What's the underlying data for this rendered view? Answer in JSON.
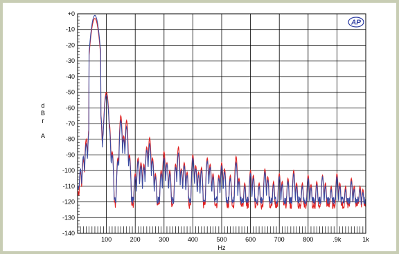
{
  "chart_data": {
    "type": "line",
    "title": "",
    "xlabel": "Hz",
    "ylabel_lines": [
      "d",
      "B",
      "r",
      "",
      "A"
    ],
    "logo": "AP",
    "xlim": [
      0,
      1000
    ],
    "ylim": [
      -140,
      0
    ],
    "grid": true,
    "x_tick_labels": [
      {
        "v": 100,
        "t": "100"
      },
      {
        "v": 200,
        "t": "200"
      },
      {
        "v": 300,
        "t": "300"
      },
      {
        "v": 400,
        "t": "400"
      },
      {
        "v": 500,
        "t": "500"
      },
      {
        "v": 600,
        "t": "600"
      },
      {
        "v": 700,
        "t": "700"
      },
      {
        "v": 800,
        "t": "800"
      },
      {
        "v": 900,
        "t": ".9k"
      },
      {
        "v": 1000,
        "t": "1k"
      }
    ],
    "y_tick_labels": [
      {
        "v": 0,
        "t": "+0"
      },
      {
        "v": -10,
        "t": "-10"
      },
      {
        "v": -20,
        "t": "-20"
      },
      {
        "v": -30,
        "t": "-30"
      },
      {
        "v": -40,
        "t": "-40"
      },
      {
        "v": -50,
        "t": "-50"
      },
      {
        "v": -60,
        "t": "-60"
      },
      {
        "v": -70,
        "t": "-70"
      },
      {
        "v": -80,
        "t": "-80"
      },
      {
        "v": -90,
        "t": "-90"
      },
      {
        "v": -100,
        "t": "-100"
      },
      {
        "v": -110,
        "t": "-110"
      },
      {
        "v": -120,
        "t": "-120"
      },
      {
        "v": -130,
        "t": "-130"
      },
      {
        "v": -140,
        "t": "-140"
      }
    ],
    "series": [
      {
        "color": "#e02020",
        "floor": -122,
        "peaks": [
          [
            10,
            -101
          ],
          [
            20,
            -93
          ],
          [
            30,
            -80
          ],
          [
            40,
            -73
          ],
          [
            60,
            -3
          ],
          [
            80,
            -66
          ],
          [
            90,
            -73
          ],
          [
            100,
            -50
          ],
          [
            110,
            -70
          ],
          [
            120,
            -88
          ],
          [
            140,
            -92
          ],
          [
            150,
            -65
          ],
          [
            160,
            -78
          ],
          [
            170,
            -68
          ],
          [
            180,
            -90
          ],
          [
            200,
            -102
          ],
          [
            210,
            -92
          ],
          [
            220,
            -95
          ],
          [
            230,
            -96
          ],
          [
            240,
            -85
          ],
          [
            250,
            -79
          ],
          [
            260,
            -92
          ],
          [
            270,
            -102
          ],
          [
            290,
            -100
          ],
          [
            300,
            -88
          ],
          [
            310,
            -95
          ],
          [
            320,
            -100
          ],
          [
            340,
            -96
          ],
          [
            350,
            -85
          ],
          [
            360,
            -99
          ],
          [
            370,
            -95
          ],
          [
            380,
            -101
          ],
          [
            400,
            -90
          ],
          [
            410,
            -97
          ],
          [
            420,
            -101
          ],
          [
            430,
            -98
          ],
          [
            450,
            -92
          ],
          [
            460,
            -96
          ],
          [
            470,
            -102
          ],
          [
            490,
            -103
          ],
          [
            500,
            -95
          ],
          [
            510,
            -99
          ],
          [
            530,
            -103
          ],
          [
            550,
            -91
          ],
          [
            560,
            -105
          ],
          [
            580,
            -108
          ],
          [
            600,
            -100
          ],
          [
            610,
            -103
          ],
          [
            630,
            -108
          ],
          [
            650,
            -99
          ],
          [
            660,
            -104
          ],
          [
            680,
            -107
          ],
          [
            700,
            -102
          ],
          [
            710,
            -107
          ],
          [
            730,
            -105
          ],
          [
            750,
            -100
          ],
          [
            760,
            -108
          ],
          [
            780,
            -108
          ],
          [
            800,
            -103
          ],
          [
            810,
            -109
          ],
          [
            830,
            -107
          ],
          [
            850,
            -103
          ],
          [
            860,
            -108
          ],
          [
            880,
            -110
          ],
          [
            900,
            -102
          ],
          [
            910,
            -108
          ],
          [
            930,
            -110
          ],
          [
            950,
            -105
          ],
          [
            960,
            -110
          ],
          [
            980,
            -110
          ],
          [
            990,
            -112
          ]
        ]
      },
      {
        "color": "#3a4aa0",
        "floor": -119,
        "peaks": [
          [
            10,
            -99
          ],
          [
            20,
            -91
          ],
          [
            30,
            -83
          ],
          [
            40,
            -75
          ],
          [
            60,
            -1
          ],
          [
            80,
            -64
          ],
          [
            90,
            -76
          ],
          [
            100,
            -52
          ],
          [
            110,
            -73
          ],
          [
            120,
            -90
          ],
          [
            140,
            -94
          ],
          [
            150,
            -68
          ],
          [
            160,
            -80
          ],
          [
            170,
            -72
          ],
          [
            180,
            -92
          ],
          [
            200,
            -104
          ],
          [
            210,
            -94
          ],
          [
            220,
            -97
          ],
          [
            230,
            -98
          ],
          [
            240,
            -87
          ],
          [
            250,
            -83
          ],
          [
            260,
            -94
          ],
          [
            270,
            -104
          ],
          [
            290,
            -102
          ],
          [
            300,
            -92
          ],
          [
            310,
            -96
          ],
          [
            320,
            -102
          ],
          [
            340,
            -98
          ],
          [
            350,
            -89
          ],
          [
            360,
            -100
          ],
          [
            370,
            -97
          ],
          [
            380,
            -103
          ],
          [
            400,
            -92
          ],
          [
            410,
            -99
          ],
          [
            420,
            -103
          ],
          [
            430,
            -100
          ],
          [
            450,
            -94
          ],
          [
            460,
            -98
          ],
          [
            470,
            -104
          ],
          [
            490,
            -105
          ],
          [
            500,
            -97
          ],
          [
            510,
            -101
          ],
          [
            530,
            -105
          ],
          [
            550,
            -95
          ],
          [
            560,
            -107
          ],
          [
            580,
            -110
          ],
          [
            600,
            -102
          ],
          [
            610,
            -105
          ],
          [
            630,
            -110
          ],
          [
            650,
            -101
          ],
          [
            660,
            -106
          ],
          [
            680,
            -109
          ],
          [
            700,
            -104
          ],
          [
            710,
            -109
          ],
          [
            730,
            -107
          ],
          [
            750,
            -102
          ],
          [
            760,
            -110
          ],
          [
            780,
            -110
          ],
          [
            800,
            -105
          ],
          [
            810,
            -111
          ],
          [
            830,
            -109
          ],
          [
            850,
            -104
          ],
          [
            860,
            -110
          ],
          [
            880,
            -112
          ],
          [
            900,
            -104
          ],
          [
            910,
            -110
          ],
          [
            930,
            -112
          ],
          [
            950,
            -107
          ],
          [
            960,
            -112
          ],
          [
            980,
            -112
          ],
          [
            990,
            -114
          ]
        ]
      }
    ]
  }
}
